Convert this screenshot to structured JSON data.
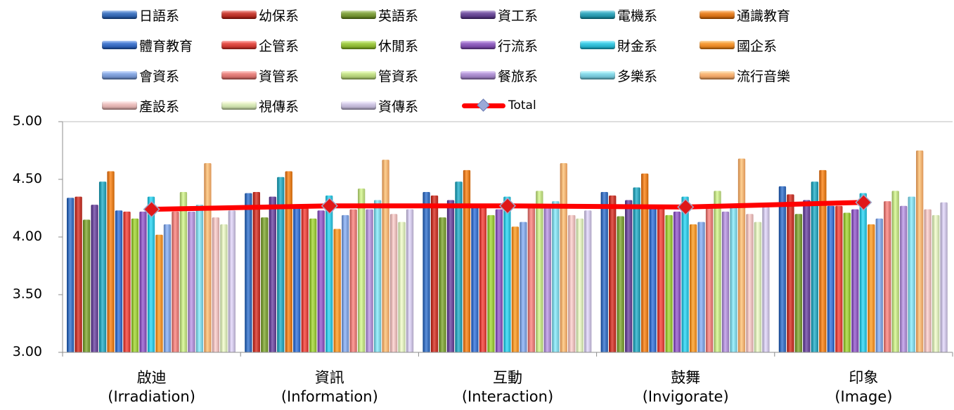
{
  "chart_data": {
    "type": "bar",
    "categories": [
      "啟迪",
      "資訊",
      "互動",
      "鼓舞",
      "印象"
    ],
    "category_sublabels": [
      "(Irradiation)",
      "(Information)",
      "(Interaction)",
      "(Invigorate)",
      "(Image)"
    ],
    "ylim": [
      3.0,
      5.0
    ],
    "yticks": [
      "3.00",
      "3.50",
      "4.00",
      "4.50",
      "5.00"
    ],
    "grid": false,
    "legend_position": "top",
    "series": [
      {
        "name": "日語系",
        "color": "#3b6eb8",
        "values": [
          4.34,
          4.38,
          4.39,
          4.39,
          4.44
        ]
      },
      {
        "name": "幼保系",
        "color": "#c0392f",
        "values": [
          4.35,
          4.39,
          4.36,
          4.36,
          4.37
        ]
      },
      {
        "name": "英語系",
        "color": "#7a9a3a",
        "values": [
          4.15,
          4.17,
          4.17,
          4.18,
          4.2
        ]
      },
      {
        "name": "資工系",
        "color": "#6a4a96",
        "values": [
          4.28,
          4.35,
          4.32,
          4.32,
          4.32
        ]
      },
      {
        "name": "電機系",
        "color": "#2f9fb4",
        "values": [
          4.48,
          4.52,
          4.48,
          4.43,
          4.48
        ]
      },
      {
        "name": "通識教育",
        "color": "#e07b20",
        "values": [
          4.57,
          4.57,
          4.58,
          4.55,
          4.58
        ]
      },
      {
        "name": "體育教育",
        "color": "#3c6fc4",
        "values": [
          4.23,
          4.26,
          4.26,
          4.27,
          4.27
        ]
      },
      {
        "name": "企管系",
        "color": "#d9463f",
        "values": [
          4.22,
          4.25,
          4.29,
          4.25,
          4.27
        ]
      },
      {
        "name": "休閒系",
        "color": "#96c03c",
        "values": [
          4.16,
          4.16,
          4.19,
          4.19,
          4.21
        ]
      },
      {
        "name": "行流系",
        "color": "#8a5ab8",
        "values": [
          4.22,
          4.23,
          4.24,
          4.22,
          4.24
        ]
      },
      {
        "name": "財金系",
        "color": "#34bfd8",
        "values": [
          4.35,
          4.36,
          4.35,
          4.35,
          4.38
        ]
      },
      {
        "name": "國企系",
        "color": "#f0912e",
        "values": [
          4.02,
          4.07,
          4.09,
          4.11,
          4.11
        ]
      },
      {
        "name": "會資系",
        "color": "#7f9fd8",
        "values": [
          4.11,
          4.19,
          4.13,
          4.13,
          4.16
        ]
      },
      {
        "name": "資管系",
        "color": "#e07c78",
        "values": [
          4.22,
          4.24,
          4.27,
          4.25,
          4.31
        ]
      },
      {
        "name": "管資系",
        "color": "#bcd882",
        "values": [
          4.39,
          4.42,
          4.4,
          4.4,
          4.4
        ]
      },
      {
        "name": "餐旅系",
        "color": "#a98ccc",
        "values": [
          4.22,
          4.24,
          4.25,
          4.22,
          4.27
        ]
      },
      {
        "name": "多樂系",
        "color": "#7fcfe0",
        "values": [
          4.28,
          4.32,
          4.31,
          4.28,
          4.35
        ]
      },
      {
        "name": "流行音樂",
        "color": "#f5ae70",
        "values": [
          4.64,
          4.67,
          4.64,
          4.68,
          4.75
        ]
      },
      {
        "name": "產設系",
        "color": "#e6b8b6",
        "values": [
          4.17,
          4.2,
          4.19,
          4.2,
          4.24
        ]
      },
      {
        "name": "視傳系",
        "color": "#d4e6b4",
        "values": [
          4.11,
          4.13,
          4.16,
          4.13,
          4.19
        ]
      },
      {
        "name": "資傳系",
        "color": "#c7bedc",
        "values": [
          4.23,
          4.24,
          4.23,
          4.26,
          4.3
        ]
      }
    ],
    "line_series": {
      "name": "Total",
      "color": "#ff0000",
      "marker_color": "#e01818",
      "values": [
        4.24,
        4.27,
        4.27,
        4.26,
        4.3
      ]
    }
  }
}
